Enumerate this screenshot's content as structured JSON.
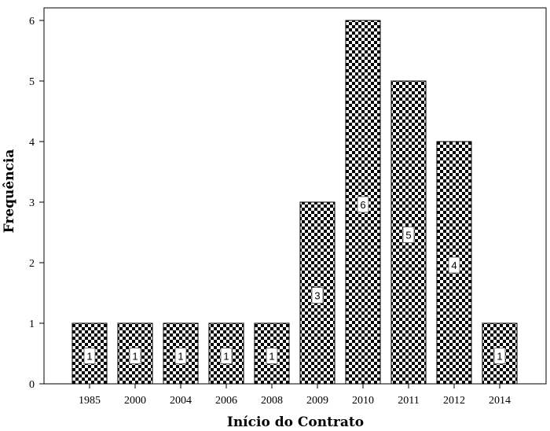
{
  "chart_data": {
    "type": "bar",
    "categories": [
      "1985",
      "2000",
      "2004",
      "2006",
      "2008",
      "2009",
      "2010",
      "2011",
      "2012",
      "2014"
    ],
    "values": [
      1,
      1,
      1,
      1,
      1,
      3,
      6,
      5,
      4,
      1
    ],
    "data_labels": [
      "1",
      "1",
      "1",
      "1",
      "1",
      "3",
      "6",
      "5",
      "4",
      "1"
    ],
    "xlabel": "Início do Contrato",
    "ylabel": "Frequência",
    "ylim": [
      0,
      6
    ],
    "yticks": [
      "0",
      "1",
      "2",
      "3",
      "4",
      "5",
      "6"
    ],
    "grid": false,
    "bar_fill": "checkerboard",
    "colors": {
      "bar_dark": "#000000",
      "bar_light": "#ffffff",
      "axis": "#000000"
    }
  }
}
